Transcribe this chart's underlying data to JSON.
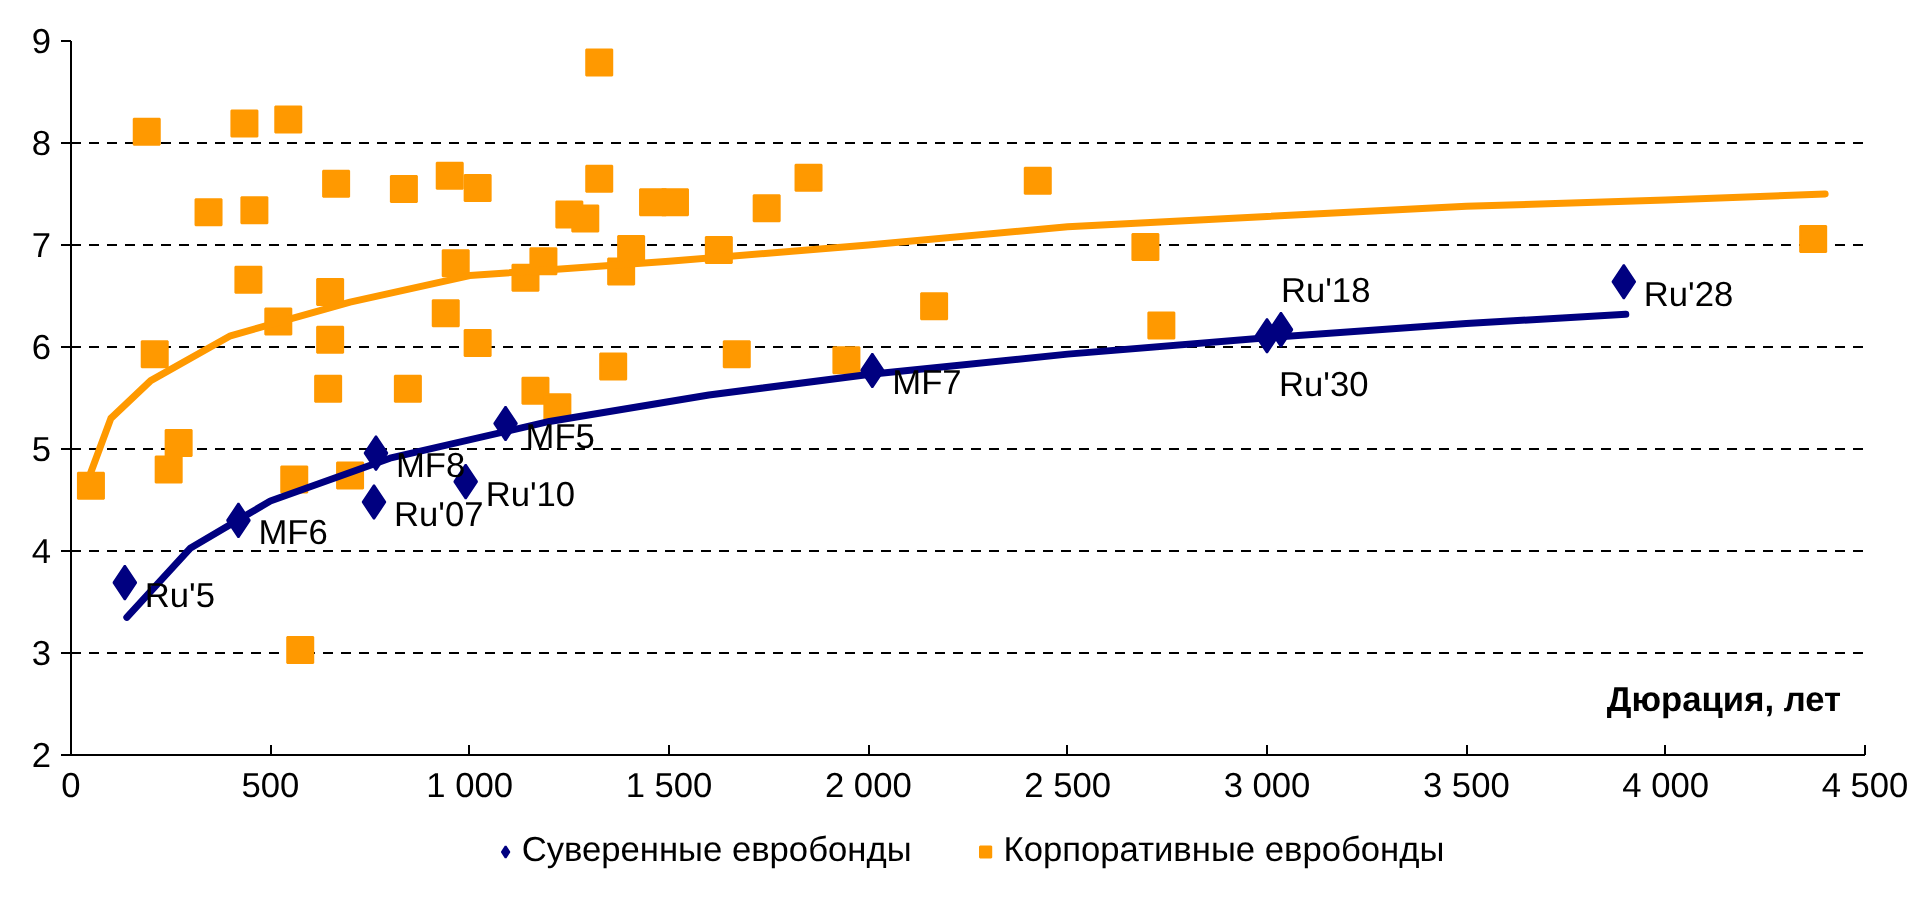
{
  "chart_data": {
    "type": "scatter",
    "xlabel": "Дюрация, лет",
    "xlim": [
      0,
      4500
    ],
    "xticks": [
      0,
      500,
      {
        "value": 1000,
        "label": "1 000"
      },
      {
        "value": 1500,
        "label": "1 500"
      },
      {
        "value": 2000,
        "label": "2 000"
      },
      {
        "value": 2500,
        "label": "2 500"
      },
      {
        "value": 3000,
        "label": "3 000"
      },
      {
        "value": 3500,
        "label": "3 500"
      },
      {
        "value": 4000,
        "label": "4 000"
      },
      {
        "value": 4500,
        "label": "4 500"
      }
    ],
    "ylim": [
      2,
      9
    ],
    "yticks": [
      2,
      3,
      4,
      5,
      6,
      7,
      8,
      9
    ],
    "grid": "y",
    "legend": "bottom",
    "annotations": [
      {
        "text": "Ru'5",
        "x": 135,
        "y": 3.69
      },
      {
        "text": "MF6",
        "x": 420,
        "y": 4.3
      },
      {
        "text": "MF8",
        "x": 765,
        "y": 4.96
      },
      {
        "text": "Ru'07",
        "x": 760,
        "y": 4.48
      },
      {
        "text": "Ru'10",
        "x": 990,
        "y": 4.68
      },
      {
        "text": "MF5",
        "x": 1090,
        "y": 5.25
      },
      {
        "text": "MF7",
        "x": 2010,
        "y": 5.77
      },
      {
        "text": "Ru'30",
        "x": 3000,
        "y": 6.11
      },
      {
        "text": "Ru'18",
        "x": 3035,
        "y": 6.17
      },
      {
        "text": "Ru'28",
        "x": 3895,
        "y": 6.64
      }
    ],
    "series": [
      {
        "name": "Суверенные евробонды",
        "color": "#000080",
        "marker": "diamond",
        "x": [
          135,
          420,
          765,
          760,
          990,
          1090,
          2010,
          3000,
          3035,
          3895
        ],
        "values": [
          3.69,
          4.3,
          4.96,
          4.48,
          4.68,
          5.25,
          5.77,
          6.11,
          6.17,
          6.64
        ]
      },
      {
        "name": "Корпоративные евробонды",
        "color": "#ff9900",
        "marker": "square",
        "x": [
          50,
          190,
          210,
          245,
          270,
          345,
          435,
          445,
          460,
          520,
          545,
          560,
          575,
          645,
          650,
          650,
          655,
          665,
          700,
          835,
          845,
          940,
          950,
          965,
          1020,
          1020,
          1140,
          1165,
          1185,
          1220,
          1250,
          1290,
          1325,
          1325,
          1360,
          1380,
          1405,
          1460,
          1515,
          1625,
          1670,
          1745,
          1850,
          1945,
          2165,
          2425,
          2695,
          2735,
          4370
        ],
        "values": [
          4.64,
          8.11,
          5.93,
          4.8,
          5.06,
          7.32,
          8.19,
          6.66,
          7.34,
          6.25,
          8.23,
          4.7,
          3.03,
          5.59,
          6.54,
          6.07,
          null,
          7.6,
          4.74,
          7.55,
          5.59,
          6.33,
          7.68,
          6.82,
          7.56,
          6.04,
          6.68,
          5.57,
          6.84,
          5.41,
          7.3,
          7.26,
          8.79,
          7.65,
          5.81,
          6.74,
          6.96,
          7.42,
          7.42,
          6.95,
          5.93,
          7.36,
          7.66,
          5.87,
          6.4,
          7.63,
          6.98,
          6.21,
          7.06
        ]
      },
      {
        "type": "line",
        "color": "#000080",
        "x": [
          140,
          300,
          500,
          800,
          1200,
          1600,
          2000,
          2500,
          3000,
          3500,
          3900
        ],
        "values": [
          3.35,
          4.03,
          4.49,
          4.91,
          5.27,
          5.53,
          5.73,
          5.93,
          6.09,
          6.23,
          6.32
        ]
      },
      {
        "type": "line",
        "color": "#ff9900",
        "x": [
          45,
          100,
          200,
          400,
          700,
          1000,
          1500,
          2000,
          2500,
          3000,
          3500,
          4000,
          4400
        ],
        "values": [
          4.72,
          5.3,
          5.67,
          6.11,
          6.44,
          6.7,
          6.84,
          7.0,
          7.18,
          7.28,
          7.38,
          7.44,
          7.5
        ]
      }
    ]
  }
}
